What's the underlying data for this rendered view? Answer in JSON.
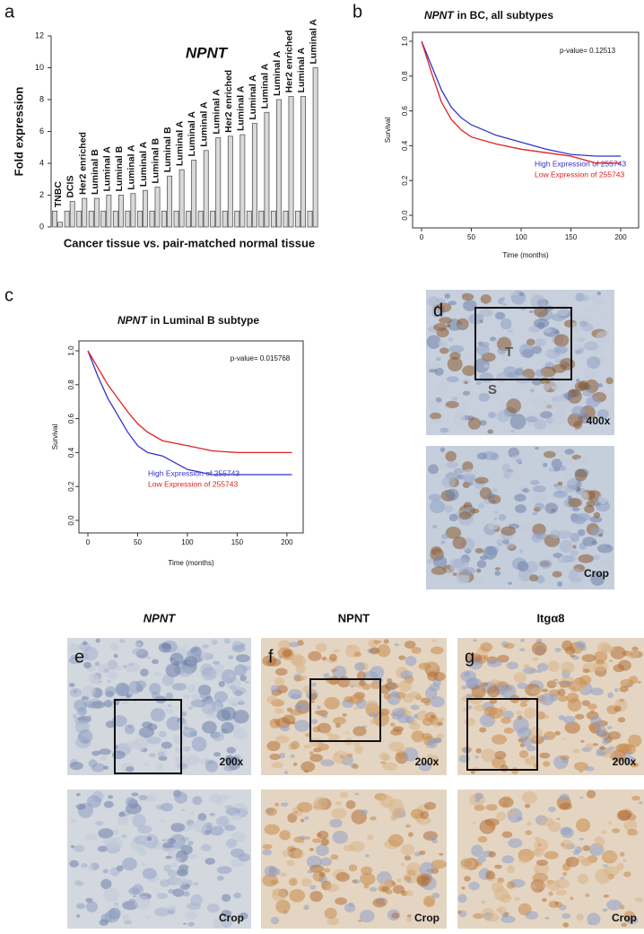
{
  "chart_data": [
    {
      "type": "bar",
      "letter": "a",
      "title": "NPNT",
      "ylabel": "Fold expression",
      "xlabel": "Cancer tissue vs. pair-matched normal tissue",
      "categories": [
        "TNBC",
        "DCIS",
        "Her2 enriched",
        "Luminal B",
        "Luminal A",
        "Luminal B",
        "Luminal A",
        "Luminal A",
        "Luminal B",
        "Luminal B",
        "Luminal A",
        "Luminal A",
        "Luminal A",
        "Luminal A",
        "Her2 enriched",
        "Luminal A",
        "Luminal A",
        "Luminal A",
        "Luminal A",
        "Her2 enriched",
        "Luminal A",
        "Luminal A"
      ],
      "series": [
        {
          "color": "#d9d9d9",
          "values": [
            1,
            1,
            1,
            1,
            1,
            1,
            1,
            1,
            1,
            1,
            1,
            1,
            1,
            1,
            1,
            1,
            1,
            1,
            1,
            1,
            1,
            1
          ]
        },
        {
          "color": "#d9d9d9",
          "values": [
            0.3,
            1.6,
            1.8,
            1.8,
            2.0,
            2.0,
            2.1,
            2.3,
            2.5,
            3.2,
            3.6,
            4.2,
            4.8,
            5.6,
            5.7,
            5.8,
            6.5,
            7.2,
            8.0,
            8.2,
            8.2,
            10.0
          ]
        }
      ],
      "ylim": [
        0,
        12
      ],
      "yticks": [
        0,
        2,
        4,
        6,
        8,
        10,
        12
      ]
    },
    {
      "type": "line",
      "letter": "b",
      "title_gene": "NPNT",
      "title": "in BC, all subtypes",
      "annotation": "p-value= 0.12513",
      "xlabel": "Time (months)",
      "ylabel": "Survival",
      "x": [
        0,
        10,
        20,
        30,
        40,
        50,
        75,
        100,
        125,
        150,
        175,
        200
      ],
      "series": [
        {
          "name": "High Expression of 255743",
          "color": "#3333cc",
          "values": [
            1,
            0.86,
            0.72,
            0.62,
            0.56,
            0.52,
            0.46,
            0.42,
            0.38,
            0.35,
            0.34,
            0.34
          ]
        },
        {
          "name": "Low Expression of 255743",
          "color": "#e02020",
          "values": [
            1,
            0.82,
            0.65,
            0.55,
            0.49,
            0.45,
            0.41,
            0.38,
            0.36,
            0.34,
            0.3,
            0.3
          ]
        }
      ],
      "xlim": [
        0,
        200
      ],
      "ylim": [
        0,
        1
      ],
      "xticks": [
        0,
        50,
        100,
        150,
        200
      ],
      "yticks": [
        {
          "value": 0,
          "label": "0.0"
        },
        0.2,
        0.4,
        0.6,
        0.8,
        {
          "value": 1,
          "label": "1.0"
        }
      ]
    },
    {
      "type": "line",
      "letter": "c",
      "title_gene": "NPNT",
      "title": "in Luminal B subtype",
      "annotation": "p-value= 0.015768",
      "xlabel": "Time (months)",
      "ylabel": "Survival",
      "x": [
        0,
        10,
        20,
        30,
        40,
        50,
        60,
        75,
        100,
        125,
        150,
        205
      ],
      "series": [
        {
          "name": "High Expression of 255743",
          "color": "#3333cc",
          "values": [
            1,
            0.85,
            0.72,
            0.62,
            0.52,
            0.44,
            0.4,
            0.38,
            0.3,
            0.27,
            0.27,
            0.27
          ]
        },
        {
          "name": "Low Expression of 255743",
          "color": "#e02020",
          "values": [
            1,
            0.9,
            0.8,
            0.72,
            0.64,
            0.57,
            0.52,
            0.47,
            0.44,
            0.41,
            0.4,
            0.4
          ]
        }
      ],
      "xlim": [
        0,
        210
      ],
      "ylim": [
        0,
        1
      ],
      "xticks": [
        0,
        50,
        100,
        150,
        200
      ],
      "yticks": [
        {
          "value": 0,
          "label": "0.0"
        },
        0.2,
        0.4,
        0.6,
        0.8,
        {
          "value": 1,
          "label": "1.0"
        }
      ]
    }
  ],
  "panel_d": {
    "letter": "d",
    "markers": [
      "T",
      "S"
    ],
    "magnification": "400x",
    "crop_label": "Crop"
  },
  "panels_efg": [
    {
      "letter": "e",
      "header": "NPNT",
      "magnification": "200x",
      "crop_label": "Crop"
    },
    {
      "letter": "f",
      "header": "NPNT",
      "magnification": "200x",
      "crop_label": "Crop"
    },
    {
      "letter": "g",
      "header": "Itgα8",
      "magnification": "200x",
      "crop_label": "Crop"
    }
  ]
}
